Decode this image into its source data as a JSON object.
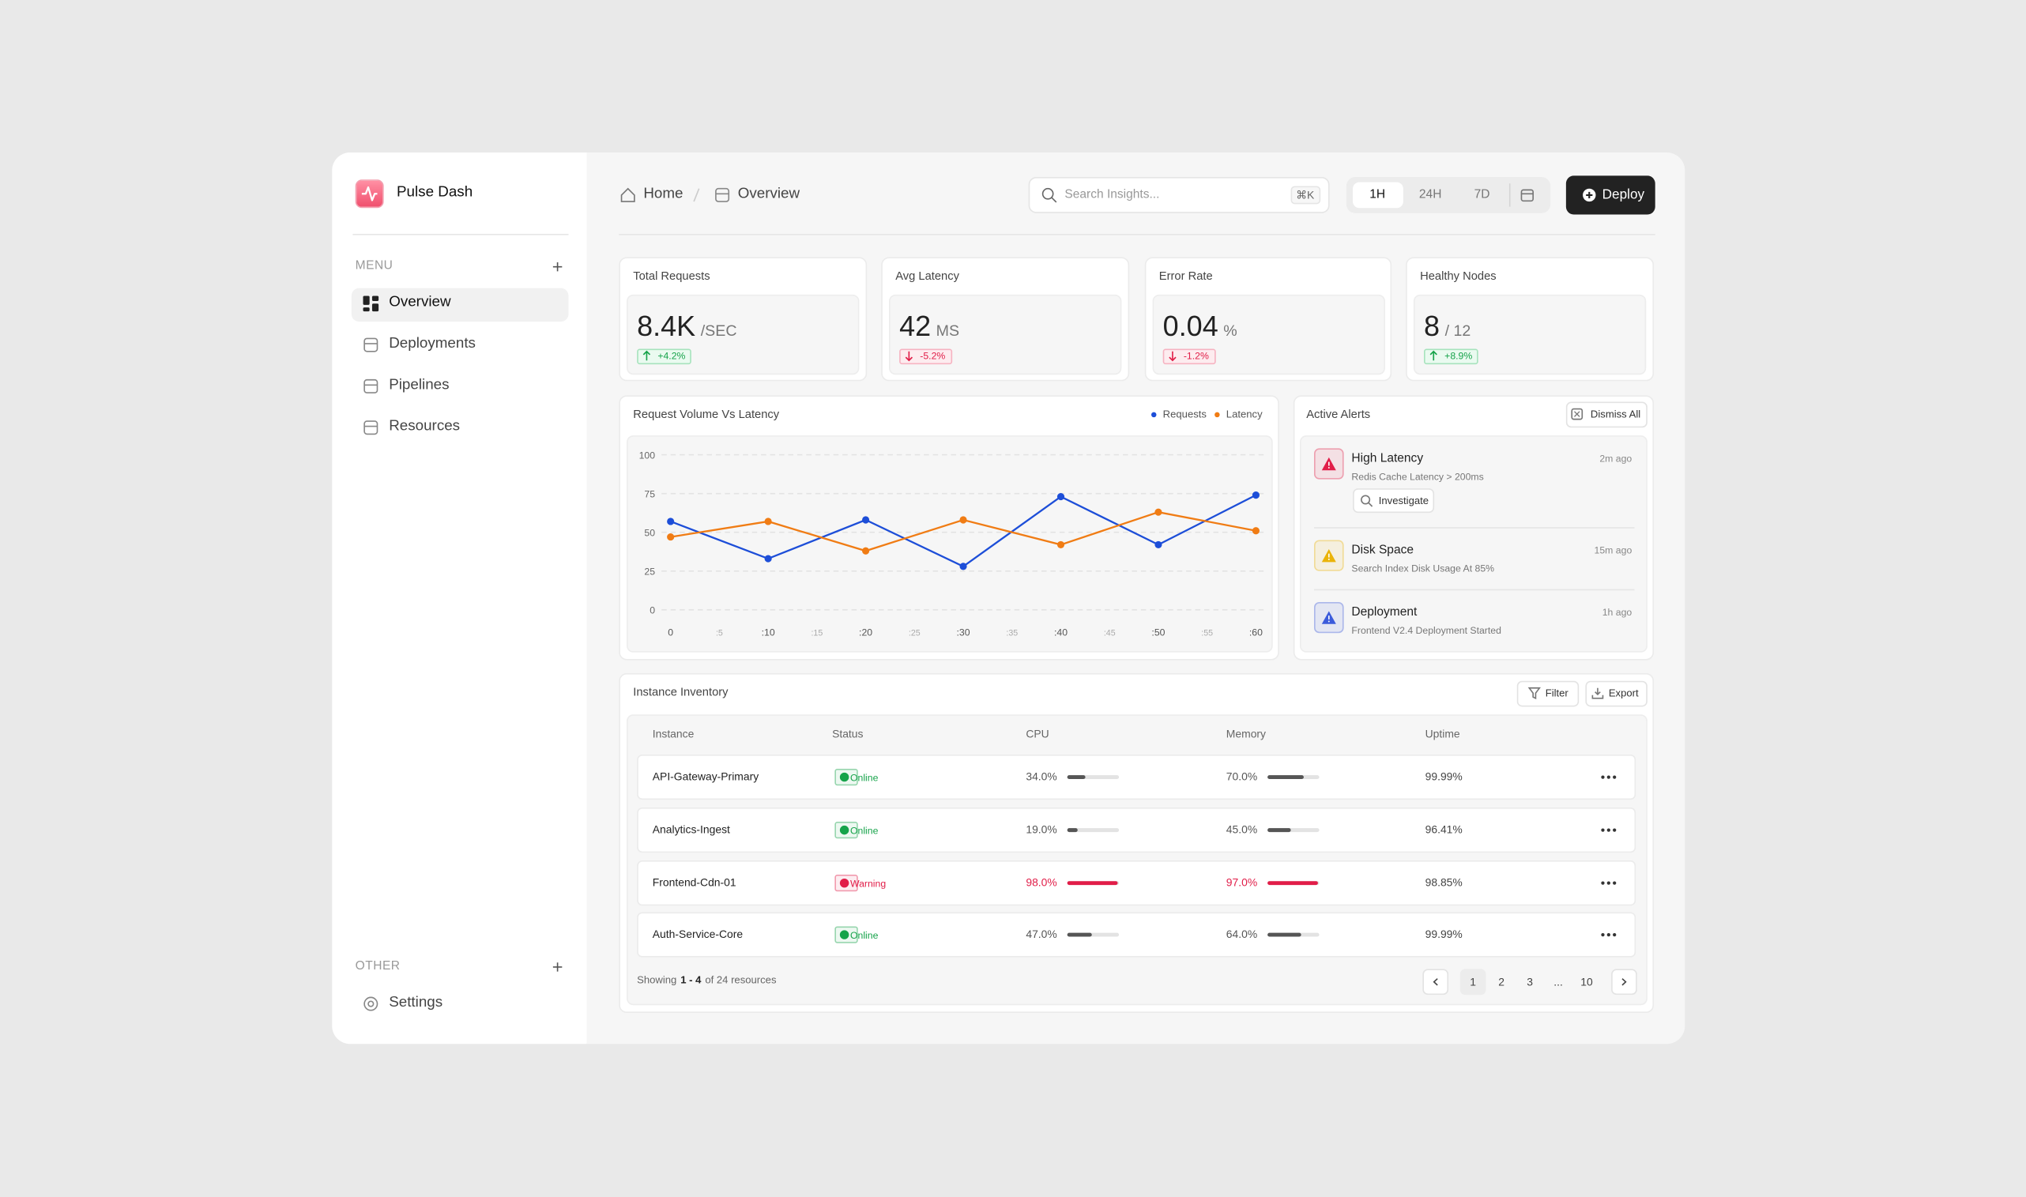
{
  "brand": "Pulse Dash",
  "sidebar": {
    "menu_label": "MENU",
    "menu": [
      "Overview",
      "Deployments",
      "Pipelines",
      "Resources"
    ],
    "other_label": "OTHER",
    "other": [
      "Settings"
    ]
  },
  "breadcrumb": [
    "Home",
    "Overview"
  ],
  "search": {
    "placeholder": "Search Insights...",
    "shortcut": "⌘K"
  },
  "ranges": [
    "1H",
    "24H",
    "7D"
  ],
  "deploy": "Deploy",
  "kpis": [
    {
      "label": "Total Requests",
      "value": "8.4K",
      "unit": "/SEC",
      "change": "+4.2%",
      "trend": "up"
    },
    {
      "label": "Avg Latency",
      "value": "42",
      "unit": "MS",
      "change": "-5.2%",
      "trend": "down"
    },
    {
      "label": "Error Rate",
      "value": "0.04",
      "unit": "%",
      "change": "-1.2%",
      "trend": "down"
    },
    {
      "label": "Healthy Nodes",
      "value": "8",
      "unit": "/ 12",
      "change": "+8.9%",
      "trend": "up"
    }
  ],
  "chart_data": {
    "type": "line",
    "title": "Request Volume Vs Latency",
    "x": [
      0,
      10,
      20,
      30,
      40,
      50,
      60
    ],
    "series": [
      {
        "name": "Requests",
        "color": "#1d4ed8",
        "values": [
          57,
          33,
          58,
          28,
          73,
          42,
          74
        ]
      },
      {
        "name": "Latency",
        "color": "#f07c14",
        "values": [
          47,
          57,
          38,
          58,
          42,
          63,
          51
        ]
      }
    ],
    "xlim": [
      0,
      60
    ],
    "xticks": [
      0,
      {
        "value": 5,
        "label": ":5"
      },
      {
        "value": 10,
        "label": ":10"
      },
      {
        "value": 15,
        "label": ":15"
      },
      {
        "value": 20,
        "label": ":20"
      },
      {
        "value": 25,
        "label": ":25"
      },
      {
        "value": 30,
        "label": ":30"
      },
      {
        "value": 35,
        "label": ":35"
      },
      {
        "value": 40,
        "label": ":40"
      },
      {
        "value": 45,
        "label": ":45"
      },
      {
        "value": 50,
        "label": ":50"
      },
      {
        "value": 55,
        "label": ":55"
      },
      {
        "value": 60,
        "label": ":60"
      }
    ],
    "ylim": [
      0,
      100
    ],
    "yticks": [
      0,
      25,
      50,
      75,
      100
    ],
    "grid": true,
    "legend": "top-right"
  },
  "alerts": {
    "title": "Active Alerts",
    "dismiss": "Dismiss All",
    "items": [
      {
        "title": "High Latency",
        "description": "Redis Cache Latency > 200ms",
        "time": "2m ago",
        "action": "Investigate",
        "color": "#e11d48"
      },
      {
        "title": "Disk Space",
        "description": "Search Index Disk Usage At 85%",
        "time": "15m ago",
        "color": "#eab308"
      },
      {
        "title": "Deployment",
        "description": "Frontend V2.4 Deployment Started",
        "time": "1h ago",
        "color": "#3b5bdb"
      }
    ]
  },
  "inventory": {
    "title": "Instance Inventory",
    "filter": "Filter",
    "export": "Export",
    "columns": [
      "Instance",
      "Status",
      "CPU",
      "Memory",
      "Uptime"
    ],
    "rows": [
      {
        "instance": "API-Gateway-Primary",
        "status": "Online",
        "status_color": "#16a34a",
        "cpu": {
          "value": 34,
          "label": "34.0%"
        },
        "memory": {
          "value": 70,
          "label": "70.0%"
        },
        "uptime": "99.99%",
        "bar_color": "#555555"
      },
      {
        "instance": "Analytics-Ingest",
        "status": "Online",
        "status_color": "#16a34a",
        "cpu": {
          "value": 19,
          "label": "19.0%"
        },
        "memory": {
          "value": 45,
          "label": "45.0%"
        },
        "uptime": "96.41%",
        "bar_color": "#555555"
      },
      {
        "instance": "Frontend-Cdn-01",
        "status": "Warning",
        "status_color": "#e11d48",
        "cpu": {
          "value": 98,
          "label": "98.0%"
        },
        "memory": {
          "value": 97,
          "label": "97.0%"
        },
        "uptime": "98.85%",
        "bar_color": "#e11d48"
      },
      {
        "instance": "Auth-Service-Core",
        "status": "Online",
        "status_color": "#16a34a",
        "cpu": {
          "value": 47,
          "label": "47.0%"
        },
        "memory": {
          "value": 64,
          "label": "64.0%"
        },
        "uptime": "99.99%",
        "bar_color": "#555555"
      }
    ],
    "footer": {
      "prefix": "Showing",
      "range": "1 - 4",
      "suffix": "of 24 resources"
    },
    "pages": [
      "1",
      "2",
      "3",
      "...",
      "10"
    ]
  }
}
